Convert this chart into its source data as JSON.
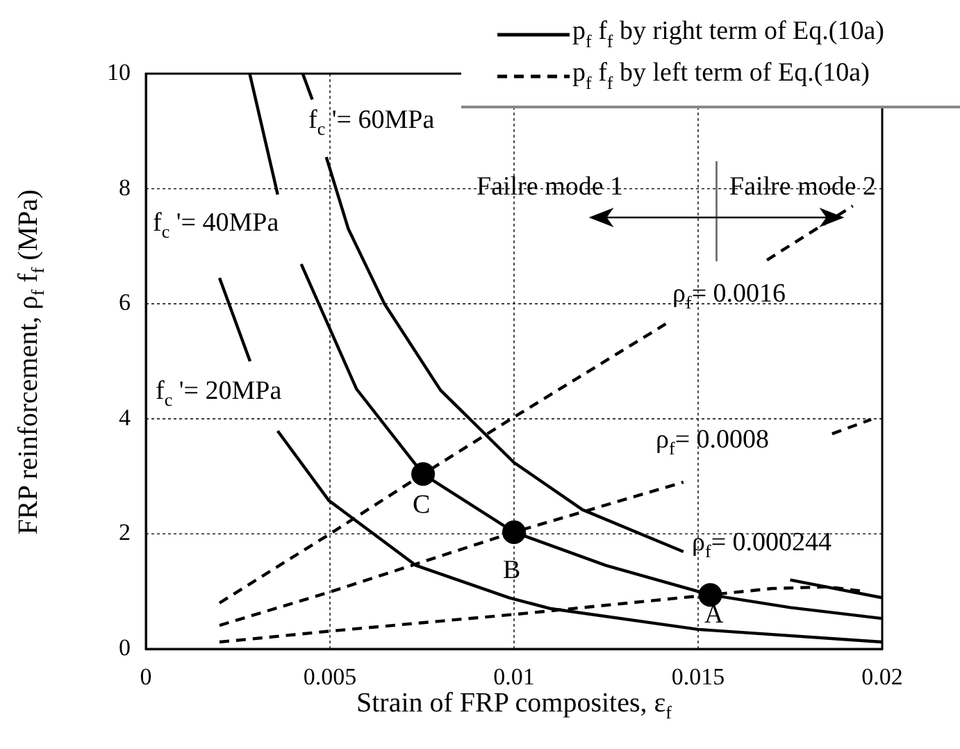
{
  "chart_data": {
    "type": "line",
    "xlabel": "Strain of FRP composites, ε$_{f}$",
    "ylabel": "FRP  reinforcement, ρ$_{f}$ f$_{f}$ (MPa)",
    "xlim": [
      0,
      0.02
    ],
    "xticks": [
      0,
      0.005,
      0.01,
      0.015,
      0.02
    ],
    "ylim": [
      0,
      10
    ],
    "yticks": [
      0,
      2,
      4,
      6,
      8,
      10
    ],
    "grid": true,
    "legend": "top right",
    "ref_lines": [
      {
        "axis": "x",
        "value": 0.0155,
        "color": "#777777"
      }
    ],
    "series": [
      {
        "name": "p$_{f}$ f$_{f}$ by right term of Eq.(10a)",
        "color": "#000000",
        "line_style": "solid",
        "x": [
          0.00426,
          0.00452,
          0.0047,
          0.0049,
          0.0055,
          0.00648,
          0.008,
          0.01,
          0.01186,
          0.0146,
          0.016,
          0.0175,
          0.02
        ],
        "values": [
          10,
          9.55,
          null,
          8.55,
          7.3,
          6,
          4.5,
          3.24,
          2.42,
          1.69,
          null,
          1.2,
          0.89
        ]
      },
      {
        "color": "#000000",
        "line_style": "solid",
        "x": [
          0.00282,
          0.00358,
          0.004,
          0.00422,
          0.00572,
          0.00753,
          0.01,
          0.0125,
          0.01533,
          0.0175,
          0.02
        ],
        "values": [
          10,
          7.9,
          null,
          6.69,
          4.52,
          3.04,
          2.03,
          1.45,
          0.94,
          0.72,
          0.53
        ]
      },
      {
        "color": "#000000",
        "line_style": "solid",
        "x": [
          0.002,
          0.00283,
          0.0032,
          0.00358,
          0.00497,
          0.00734,
          0.00987,
          0.011,
          0.015,
          0.02
        ],
        "values": [
          6.45,
          5.0,
          null,
          3.79,
          2.58,
          1.45,
          0.89,
          0.7,
          0.34,
          0.12
        ]
      },
      {
        "name": "p$_{f}$ f$_{f}$ by left term of Eq.(10a)",
        "color": "#000000",
        "line_style": "dashed",
        "x": [
          0.002,
          0.005,
          0.00753,
          0.01,
          0.01412,
          0.0155,
          0.01687,
          0.0192
        ],
        "values": [
          0.8,
          2,
          3.04,
          4.03,
          5.65,
          null,
          6.76,
          7.7
        ]
      },
      {
        "color": "#000000",
        "line_style": "dashed",
        "x": [
          0.002,
          0.005,
          0.01,
          0.0146,
          0.0166,
          0.01864,
          0.0197
        ],
        "values": [
          0.41,
          0.99,
          2.03,
          2.9,
          null,
          3.74,
          3.99
        ]
      },
      {
        "color": "#000000",
        "line_style": "dashed",
        "x": [
          0.002,
          0.005,
          0.01,
          0.01533,
          0.017,
          0.0185,
          0.0195
        ],
        "values": [
          0.12,
          0.31,
          0.6,
          0.94,
          1.05,
          1.08,
          1.0
        ]
      },
      {
        "type": "scatter",
        "marker": "circle",
        "color": "#000000",
        "x": [
          0.01533,
          0.01,
          0.00753
        ],
        "values": [
          0.94,
          2.03,
          3.04
        ]
      }
    ],
    "annotations": [
      "f$_{c}$ '= 60MPa",
      "f$_{c}$ '= 40MPa",
      "f$_{c}$ '= 20MPa",
      "ρ$_{f}$= 0.0016",
      "ρ$_{f}$= 0.0008",
      "ρ$_{f}$= 0.000244",
      "A",
      "B",
      "C",
      {
        "text": "Failre mode 1",
        "x": 0.0155,
        "y": 7.5
      },
      {
        "text": "Failre mode 2",
        "x": 0.0155,
        "y": 7.5
      }
    ]
  }
}
